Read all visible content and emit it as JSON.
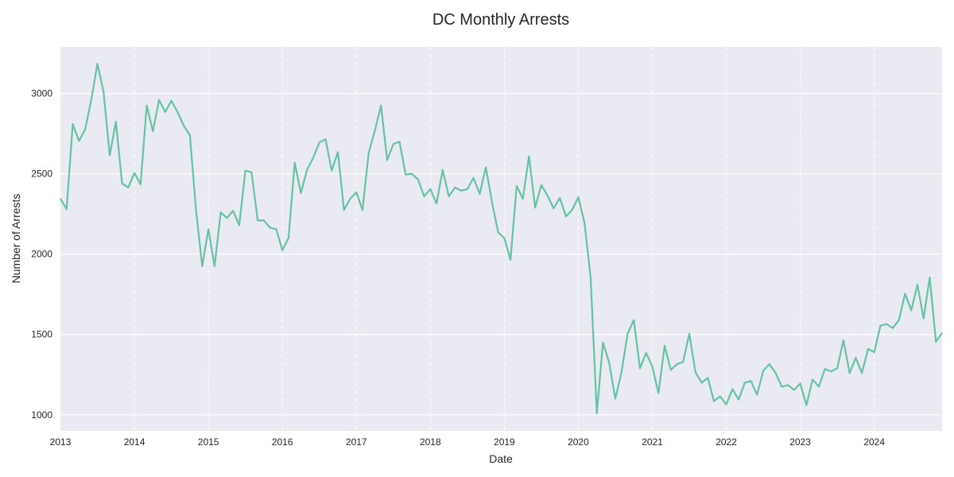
{
  "chart_data": {
    "type": "line",
    "title": "DC Monthly Arrests",
    "xlabel": "Date",
    "ylabel": "Number of Arrests",
    "xlim": [
      "2013-01",
      "2024-12"
    ],
    "ylim": [
      900,
      3290
    ],
    "grid": {
      "y": "solid white",
      "x": "dashed white"
    },
    "background": "#eaeaf2",
    "line_color": "#66c2a5",
    "y_ticks": [
      1000,
      1500,
      2000,
      2500,
      3000
    ],
    "x_ticks": [
      "2013",
      "2014",
      "2015",
      "2016",
      "2017",
      "2018",
      "2019",
      "2020",
      "2021",
      "2022",
      "2023",
      "2024"
    ],
    "series": [
      {
        "start": "2013-01",
        "frequency": "monthly",
        "values": [
          2345,
          2280,
          2810,
          2705,
          2775,
          2960,
          3185,
          3010,
          2615,
          2825,
          2440,
          2415,
          2505,
          2435,
          2925,
          2765,
          2960,
          2885,
          2955,
          2885,
          2800,
          2740,
          2270,
          1925,
          2155,
          1925,
          2260,
          2225,
          2270,
          2180,
          2520,
          2510,
          2210,
          2210,
          2165,
          2155,
          2025,
          2100,
          2570,
          2380,
          2525,
          2600,
          2695,
          2715,
          2520,
          2635,
          2275,
          2345,
          2385,
          2275,
          2630,
          2770,
          2925,
          2585,
          2685,
          2700,
          2495,
          2500,
          2465,
          2360,
          2405,
          2315,
          2525,
          2360,
          2415,
          2395,
          2405,
          2475,
          2375,
          2540,
          2325,
          2135,
          2100,
          1965,
          2425,
          2345,
          2610,
          2290,
          2430,
          2365,
          2285,
          2350,
          2235,
          2275,
          2355,
          2195,
          1855,
          1010,
          1450,
          1325,
          1100,
          1265,
          1505,
          1590,
          1290,
          1385,
          1300,
          1135,
          1430,
          1280,
          1315,
          1330,
          1505,
          1265,
          1200,
          1230,
          1085,
          1115,
          1065,
          1160,
          1095,
          1200,
          1210,
          1125,
          1275,
          1315,
          1260,
          1175,
          1185,
          1155,
          1195,
          1060,
          1220,
          1175,
          1285,
          1270,
          1290,
          1465,
          1260,
          1355,
          1260,
          1410,
          1390,
          1555,
          1565,
          1540,
          1590,
          1755,
          1650,
          1810,
          1600,
          1855,
          1455,
          1510
        ]
      }
    ]
  }
}
